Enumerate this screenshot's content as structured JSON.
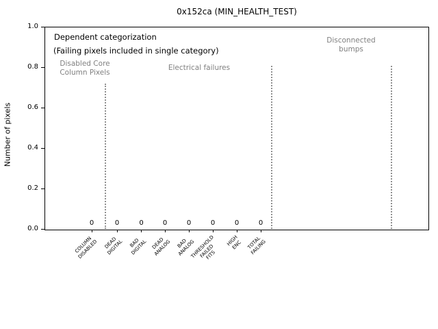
{
  "chart_data": {
    "type": "bar",
    "title": "0x152ca (MIN_HEALTH_TEST)",
    "xlabel": "",
    "ylabel": "Number of pixels",
    "ylim": [
      0.0,
      1.0
    ],
    "ytick_values": [
      0.0,
      0.2,
      0.4,
      0.6,
      0.8,
      1.0
    ],
    "ytick_labels": [
      "0.0",
      "0.2",
      "0.4",
      "0.6",
      "0.8",
      "1.0"
    ],
    "categories": [
      "COLUMN\nDISABLED",
      "DEAD\nDIGITAL",
      "BAD\nDIGITAL",
      "DEAD\nANALOG",
      "BAD\nANALOG",
      "THRESHOLD\nFAILED\nFITS",
      "HIGH\nENC",
      "TOTAL\nFAILING"
    ],
    "values": [
      0,
      0,
      0,
      0,
      0,
      0,
      0,
      0
    ],
    "bar_value_labels": [
      "0",
      "0",
      "0",
      "0",
      "0",
      "0",
      "0",
      "0"
    ],
    "grid": false,
    "legend": null,
    "separator_line_style": "dotted",
    "annotations": {
      "heading_line1": "Dependent categorization",
      "heading_line2": "(Failing pixels included in single category)",
      "region_labels": [
        "Disabled Core\nColumn Pixels",
        "Electrical failures",
        "Disconnected\nbumps"
      ]
    },
    "colors": {
      "text": "#000000",
      "muted_text": "#808080",
      "separator": "#909090",
      "axis": "#000000",
      "background": "#ffffff"
    }
  }
}
